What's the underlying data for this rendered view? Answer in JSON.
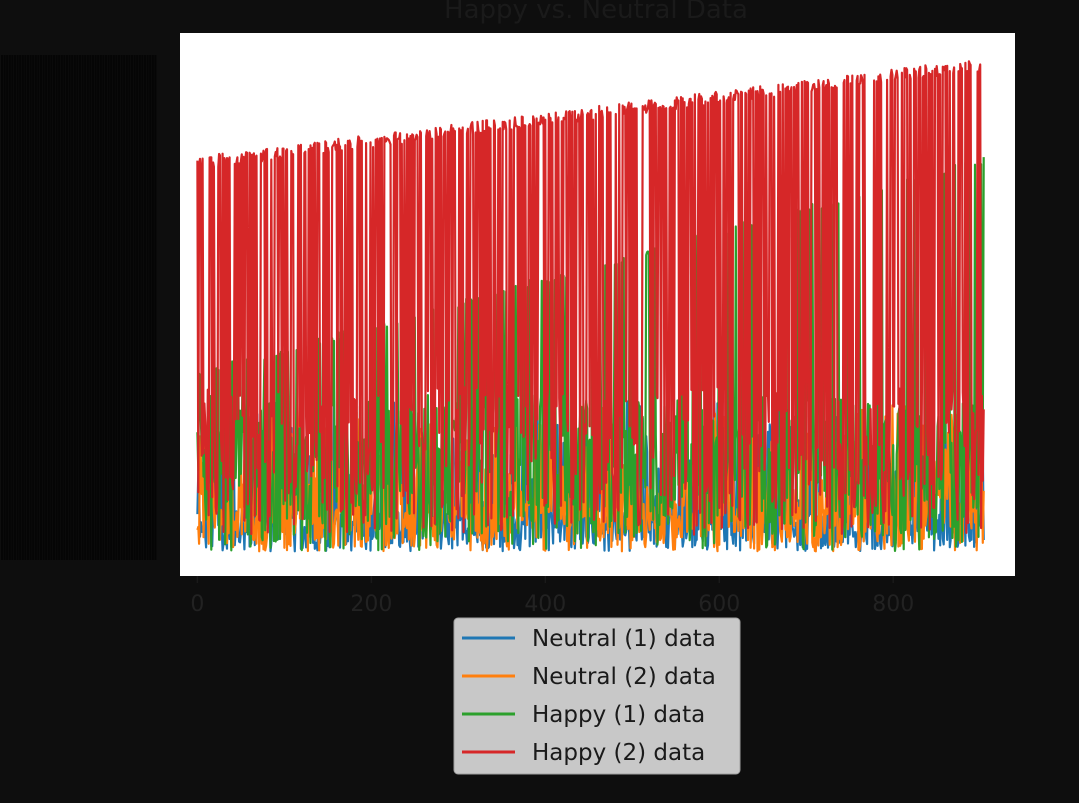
{
  "chart_data": {
    "type": "line",
    "title": "Happy vs. Neutral Data",
    "xlabel": "",
    "ylabel": "",
    "xlim": [
      -20,
      940
    ],
    "ylim": [
      -0.15,
      3.15
    ],
    "x_ticks": [
      0,
      200,
      400,
      600,
      800
    ],
    "x_tick_labels": [
      "0",
      "200",
      "400",
      "600",
      "800"
    ],
    "y_tick_labels_legible": false,
    "grid": false,
    "legend_position": "below plot, center",
    "n_points": 905,
    "x": "0..904, step 1",
    "series": [
      {
        "name": "Neutral (1) data",
        "color": "#1f77b4",
        "description": "Noisy signal spanning approximately 0.0 to 0.9 throughout the full index range",
        "approx_min": 0.0,
        "approx_max": 0.92
      },
      {
        "name": "Neutral (2) data",
        "color": "#ff7f0e",
        "description": "Noisy signal spanning approximately 0.0 to 0.9 throughout the full index range",
        "approx_min": 0.0,
        "approx_max": 0.9
      },
      {
        "name": "Happy (1) data",
        "color": "#2ca02c",
        "description": "Alternates between a low band (~0 to 0.95) and an upper envelope rising roughly linearly from ~1.1 at x=0 to ~2.4 at x=904",
        "low_band": [
          0.0,
          0.95
        ],
        "upper_envelope_start": 1.1,
        "upper_envelope_end": 2.4
      },
      {
        "name": "Happy (2) data",
        "color": "#d62728",
        "description": "Dense spikes between a low band and an upper envelope rising from ~2.4 at x=0 to ~3.0 at x=904",
        "low_band": [
          0.1,
          1.0
        ],
        "upper_envelope_start": 2.4,
        "upper_envelope_end": 3.0
      }
    ]
  }
}
